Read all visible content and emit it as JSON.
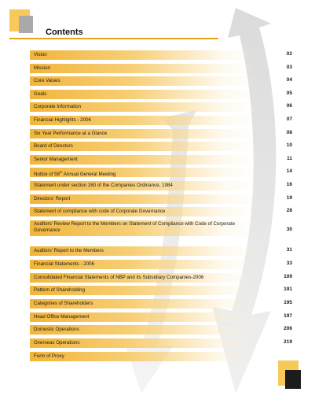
{
  "header": {
    "title": "Contents"
  },
  "colors": {
    "accent": "#f2b53a",
    "rule": "#e7a51c",
    "arrow": "#c8c8c8"
  },
  "toc": [
    {
      "label": "Vision",
      "page": "02"
    },
    {
      "label": "Mission",
      "page": "03"
    },
    {
      "label": "Core Values",
      "page": "04"
    },
    {
      "label": "Goals",
      "page": "05"
    },
    {
      "label": "Corporate  Information",
      "page": "06"
    },
    {
      "label": "Financial Highlights - 2006",
      "page": "07"
    },
    {
      "label": "Six Year Performance at a Glance",
      "page": "08"
    },
    {
      "label": "Board of Directors",
      "page": "10"
    },
    {
      "label": "Senior Management",
      "page": "11"
    },
    {
      "label": "Notice of 58th Annual General Meeting",
      "page": "14"
    },
    {
      "label": "Statement under section 160 of the Companies Ordinance, 1984",
      "page": "16"
    },
    {
      "label": "Directors' Report",
      "page": "19"
    },
    {
      "label": "Statement of compliance with  code of Corporate Governance",
      "page": "28"
    },
    {
      "label": "Auditors' Review Report to the Members  on Statement of Compliance with Code of  Corporate Governance",
      "page": "30"
    },
    {
      "label": "Auditors' Report to the Members",
      "page": "31"
    },
    {
      "label": "Financial Statements - 2006",
      "page": "33"
    },
    {
      "label": "Consolidated Financial Statements of NBP and its Subsidiary Companies-2006",
      "page": "109"
    },
    {
      "label": "Pattern of Shareholding",
      "page": "191"
    },
    {
      "label": "Categories of Shareholders",
      "page": "195"
    },
    {
      "label": "Head Office Management",
      "page": "197"
    },
    {
      "label": "Domestic Operations",
      "page": "206"
    },
    {
      "label": "Overseas Operations",
      "page": "219"
    },
    {
      "label": "Form of Proxy",
      "page": ""
    }
  ]
}
